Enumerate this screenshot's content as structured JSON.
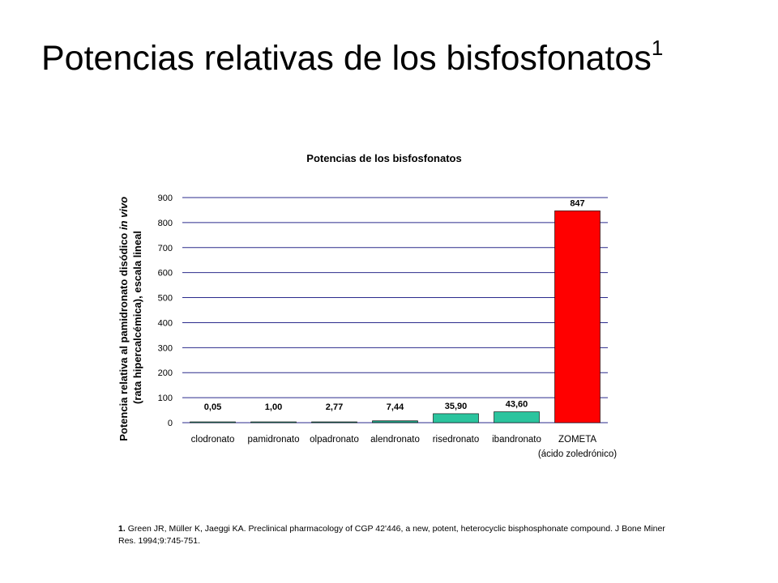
{
  "slide": {
    "title": "Potencias relativas de los bisfosfonatos",
    "title_sup": "1"
  },
  "footnote": {
    "number": "1.",
    "text": "Green JR, Müller K, Jaeggi KA. Preclinical pharmacology of CGP 42'446, a new, potent, heterocyclic bisphosphonate compound. J Bone Miner Res. 1994;9:745-751."
  },
  "chart_data": {
    "type": "bar",
    "title": "Potencias de los bisfosfonatos",
    "ylabel_line1_prefix": "Potencia relativa al pamidronato disódico ",
    "ylabel_line1_italic": "in vivo",
    "ylabel_line2": "(rata hipercalcémica), escala lineal",
    "xlabel": "",
    "ylim": [
      0,
      900
    ],
    "yticks": [
      0,
      100,
      200,
      300,
      400,
      500,
      600,
      700,
      800,
      900
    ],
    "grid": true,
    "categories": [
      "clodronato",
      "pamidronato",
      "olpadronato",
      "alendronato",
      "risedronato",
      "ibandronato",
      "ZOMETA"
    ],
    "category_sublabels": [
      "",
      "",
      "",
      "",
      "",
      "",
      "(ácido zoledrónico)"
    ],
    "values": [
      0.05,
      1.0,
      2.77,
      7.44,
      35.9,
      43.6,
      847
    ],
    "value_labels": [
      "0,05",
      "1,00",
      "2,77",
      "7,44",
      "35,90",
      "43,60",
      "847"
    ],
    "bar_colors": [
      "#2db59a",
      "#2db59a",
      "#1f9a80",
      "#1f9a80",
      "#2bc49e",
      "#2bc49e",
      "#ff0000"
    ],
    "gridline_color": "#2b2b8c"
  }
}
